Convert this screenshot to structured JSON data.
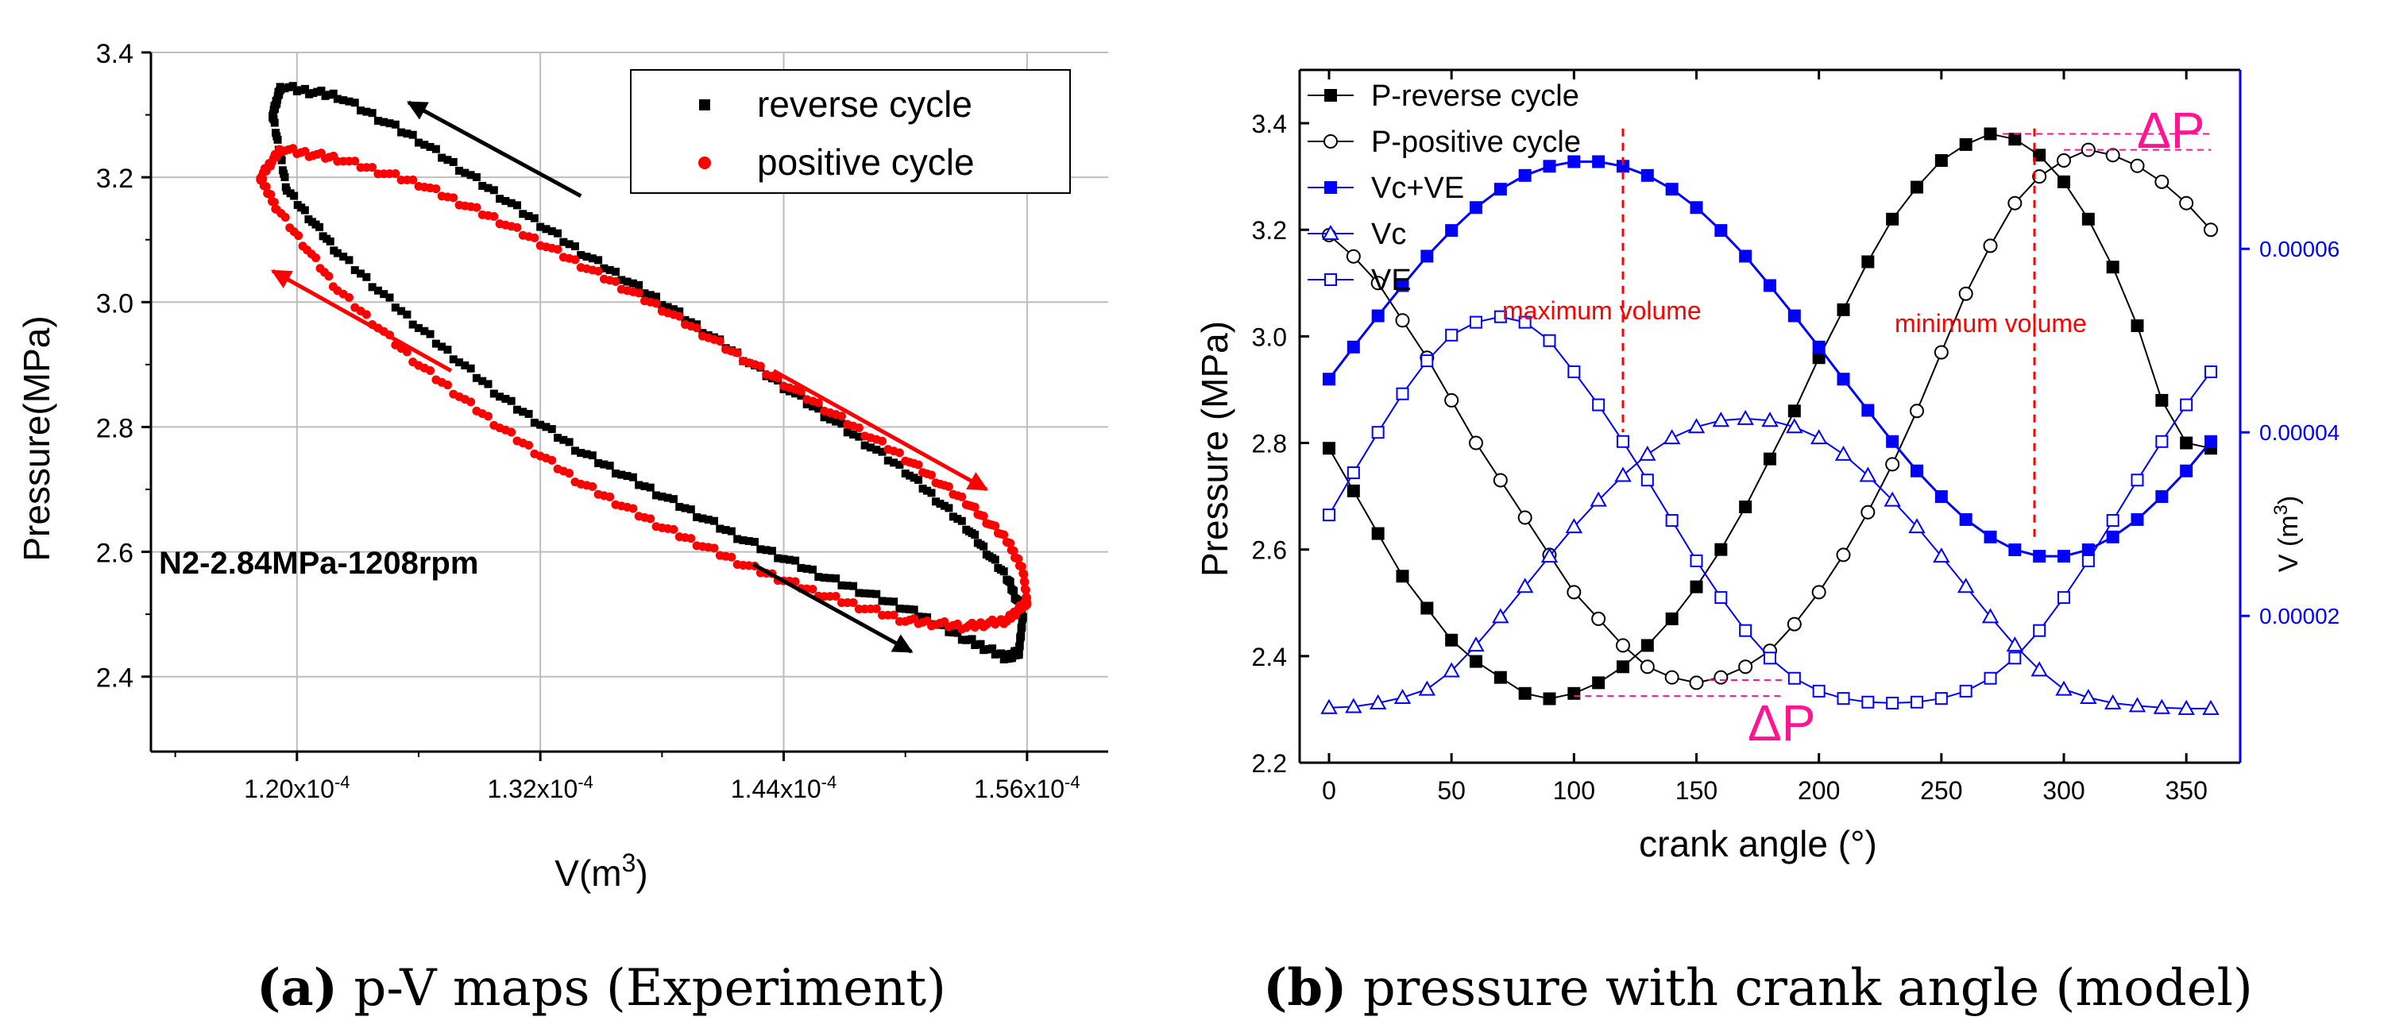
{
  "chart_data": [
    {
      "id": "a",
      "type": "scatter",
      "caption": {
        "letter": "a",
        "text": " p-V maps (Experiment)"
      },
      "xlabel": {
        "base": "V(m",
        "sup": "3",
        "close": ")"
      },
      "ylabel": "Pressure(MPa)",
      "xlim": [
        0.0001128,
        0.00016
      ],
      "ylim": [
        2.28,
        3.4
      ],
      "xticks": [
        {
          "value": 0.00012,
          "label": "1.20x10",
          "exp": "-4"
        },
        {
          "value": 0.000132,
          "label": "1.32x10",
          "exp": "-4"
        },
        {
          "value": 0.000144,
          "label": "1.44x10",
          "exp": "-4"
        },
        {
          "value": 0.000156,
          "label": "1.56x10",
          "exp": "-4"
        }
      ],
      "yticks": [
        2.4,
        2.6,
        2.8,
        3.0,
        3.2,
        3.4
      ],
      "ytick_labels": [
        "2.4",
        "2.6",
        "2.8",
        "3.0",
        "3.2",
        "3.4"
      ],
      "grid": true,
      "annotation": "N2-2.84MPa-1208rpm",
      "legend": {
        "position": "top-right",
        "entries": [
          {
            "label": "reverse cycle",
            "color": "#000000",
            "marker": "square"
          },
          {
            "label": "positive cycle",
            "color": "#ff0000",
            "marker": "circle"
          }
        ]
      },
      "series": [
        {
          "name": "reverse cycle",
          "color": "#000000",
          "marker": "square",
          "loop_upper": [
            [
              0.0001188,
              3.3
            ],
            [
              0.0001192,
              3.345
            ],
            [
              0.000122,
              3.33
            ],
            [
              0.000126,
              3.26
            ],
            [
              0.00013,
              3.17
            ],
            [
              0.000134,
              3.08
            ],
            [
              0.000138,
              3.0
            ],
            [
              0.000142,
              2.91
            ],
            [
              0.000146,
              2.82
            ],
            [
              0.00015,
              2.73
            ],
            [
              0.000153,
              2.64
            ],
            [
              0.000155,
              2.56
            ],
            [
              0.0001558,
              2.5
            ],
            [
              0.0001556,
              2.44
            ]
          ],
          "loop_lower": [
            [
              0.0001188,
              3.3
            ],
            [
              0.0001195,
              3.18
            ],
            [
              0.000122,
              3.08
            ],
            [
              0.000126,
              2.96
            ],
            [
              0.00013,
              2.85
            ],
            [
              0.000134,
              2.76
            ],
            [
              0.000138,
              2.69
            ],
            [
              0.000142,
              2.62
            ],
            [
              0.000146,
              2.56
            ],
            [
              0.00015,
              2.51
            ],
            [
              0.000153,
              2.46
            ],
            [
              0.000155,
              2.43
            ],
            [
              0.0001556,
              2.44
            ]
          ]
        },
        {
          "name": "positive cycle",
          "color": "#ff0000",
          "marker": "circle",
          "loop_upper": [
            [
              0.0001182,
              3.2
            ],
            [
              0.0001192,
              3.245
            ],
            [
              0.000122,
              3.23
            ],
            [
              0.000126,
              3.19
            ],
            [
              0.00013,
              3.13
            ],
            [
              0.000134,
              3.06
            ],
            [
              0.000138,
              2.99
            ],
            [
              0.000142,
              2.91
            ],
            [
              0.000146,
              2.83
            ],
            [
              0.00015,
              2.75
            ],
            [
              0.000153,
              2.68
            ],
            [
              0.000155,
              2.62
            ],
            [
              0.0001558,
              2.57
            ],
            [
              0.000156,
              2.52
            ]
          ],
          "loop_lower": [
            [
              0.0001182,
              3.2
            ],
            [
              0.000119,
              3.15
            ],
            [
              0.000122,
              3.02
            ],
            [
              0.000126,
              2.9
            ],
            [
              0.00013,
              2.8
            ],
            [
              0.000134,
              2.71
            ],
            [
              0.000138,
              2.64
            ],
            [
              0.000142,
              2.58
            ],
            [
              0.000146,
              2.53
            ],
            [
              0.00015,
              2.49
            ],
            [
              0.000153,
              2.48
            ],
            [
              0.000155,
              2.49
            ],
            [
              0.000156,
              2.52
            ]
          ]
        }
      ],
      "arrows": [
        {
          "color": "#000000",
          "from": [
            0.000134,
            3.17
          ],
          "to": [
            0.0001255,
            3.32
          ]
        },
        {
          "color": "#ff0000",
          "from": [
            0.0001276,
            2.89
          ],
          "to": [
            0.0001188,
            3.05
          ]
        },
        {
          "color": "#ff0000",
          "from": [
            0.0001435,
            2.89
          ],
          "to": [
            0.000154,
            2.7
          ]
        },
        {
          "color": "#000000",
          "from": [
            0.0001425,
            2.58
          ],
          "to": [
            0.0001503,
            2.44
          ]
        }
      ]
    },
    {
      "id": "b",
      "type": "line",
      "caption": {
        "letter": "b",
        "text": " pressure with crank angle (model)"
      },
      "xlabel": "crank angle (°)",
      "ylabel": "Pressure (MPa)",
      "y2label": {
        "base": "V (m",
        "sup": "3",
        "close": ")"
      },
      "xlim": [
        -12,
        372
      ],
      "ylim": [
        2.2,
        3.5
      ],
      "y2lim": [
        4e-06,
        7.95e-05
      ],
      "xticks": [
        0,
        50,
        100,
        150,
        200,
        250,
        300,
        350
      ],
      "xtick_labels": [
        "0",
        "50",
        "100",
        "150",
        "200",
        "250",
        "300",
        "350"
      ],
      "yticks": [
        2.2,
        2.4,
        2.6,
        2.8,
        3.0,
        3.2,
        3.4
      ],
      "ytick_labels": [
        "2.2",
        "2.4",
        "2.6",
        "2.8",
        "3.0",
        "3.2",
        "3.4"
      ],
      "y2ticks": [
        2e-05,
        4e-05,
        6e-05
      ],
      "y2tick_labels": [
        "0.00002",
        "0.00004",
        "0.00006"
      ],
      "grid": false,
      "legend": {
        "position": "top-left",
        "entries": [
          {
            "label": "P-reverse cycle",
            "color": "#000000",
            "marker": "square-filled"
          },
          {
            "label": "P-positive cycle",
            "color": "#000000",
            "marker": "circle-open"
          },
          {
            "label": "Vc+VE",
            "color": "#0000ff",
            "marker": "square-filled"
          },
          {
            "label": "Vc",
            "color": "#0000ff",
            "marker": "triangle-open"
          },
          {
            "label": "VE",
            "color": "#0000ff",
            "marker": "square-open"
          }
        ]
      },
      "x": [
        0,
        10,
        20,
        30,
        40,
        50,
        60,
        70,
        80,
        90,
        100,
        110,
        120,
        130,
        140,
        150,
        160,
        170,
        180,
        190,
        200,
        210,
        220,
        230,
        240,
        250,
        260,
        270,
        280,
        290,
        300,
        310,
        320,
        330,
        340,
        350,
        360
      ],
      "series": [
        {
          "name": "P-reverse cycle",
          "axis": "left",
          "color": "#000000",
          "marker": "square-filled",
          "values": [
            2.79,
            2.71,
            2.63,
            2.55,
            2.49,
            2.43,
            2.39,
            2.36,
            2.33,
            2.32,
            2.33,
            2.35,
            2.38,
            2.42,
            2.47,
            2.53,
            2.6,
            2.68,
            2.77,
            2.86,
            2.96,
            3.05,
            3.14,
            3.22,
            3.28,
            3.33,
            3.36,
            3.38,
            3.37,
            3.34,
            3.29,
            3.22,
            3.13,
            3.02,
            2.88,
            2.8,
            2.79
          ]
        },
        {
          "name": "P-positive cycle",
          "axis": "left",
          "color": "#000000",
          "marker": "circle-open",
          "values": [
            3.19,
            3.15,
            3.1,
            3.03,
            2.96,
            2.88,
            2.8,
            2.73,
            2.66,
            2.59,
            2.52,
            2.47,
            2.42,
            2.38,
            2.36,
            2.35,
            2.36,
            2.38,
            2.41,
            2.46,
            2.52,
            2.59,
            2.67,
            2.76,
            2.86,
            2.97,
            3.08,
            3.17,
            3.25,
            3.3,
            3.33,
            3.35,
            3.34,
            3.32,
            3.29,
            3.25,
            3.2
          ]
        },
        {
          "name": "Vc+VE",
          "axis": "right",
          "color": "#0000ff",
          "marker": "square-filled",
          "values": [
            4.58e-05,
            4.93e-05,
            5.27e-05,
            5.6e-05,
            5.92e-05,
            6.2e-05,
            6.45e-05,
            6.65e-05,
            6.8e-05,
            6.9e-05,
            6.95e-05,
            6.95e-05,
            6.9e-05,
            6.8e-05,
            6.65e-05,
            6.45e-05,
            6.2e-05,
            5.92e-05,
            5.6e-05,
            5.27e-05,
            4.93e-05,
            4.58e-05,
            4.24e-05,
            3.9e-05,
            3.58e-05,
            3.3e-05,
            3.05e-05,
            2.86e-05,
            2.72e-05,
            2.65e-05,
            2.65e-05,
            2.72e-05,
            2.86e-05,
            3.05e-05,
            3.3e-05,
            3.58e-05,
            3.9e-05
          ]
        },
        {
          "name": "Vc",
          "axis": "right",
          "color": "#0000ff",
          "marker": "triangle-open",
          "values": [
            1e-05,
            1.01e-05,
            1.05e-05,
            1.11e-05,
            1.2e-05,
            1.4e-05,
            1.68e-05,
            1.99e-05,
            2.32e-05,
            2.65e-05,
            2.97e-05,
            3.26e-05,
            3.53e-05,
            3.76e-05,
            3.94e-05,
            4.06e-05,
            4.13e-05,
            4.15e-05,
            4.13e-05,
            4.06e-05,
            3.94e-05,
            3.76e-05,
            3.53e-05,
            3.26e-05,
            2.97e-05,
            2.65e-05,
            2.32e-05,
            1.99e-05,
            1.68e-05,
            1.41e-05,
            1.2e-05,
            1.11e-05,
            1.05e-05,
            1.02e-05,
            1e-05,
            9.9e-06,
            9.9e-06
          ]
        },
        {
          "name": "VE",
          "axis": "right",
          "color": "#0000ff",
          "marker": "square-open",
          "values": [
            3.1e-05,
            3.56e-05,
            4e-05,
            4.42e-05,
            4.78e-05,
            5.06e-05,
            5.2e-05,
            5.26e-05,
            5.2e-05,
            5e-05,
            4.66e-05,
            4.3e-05,
            3.9e-05,
            3.48e-05,
            3.04e-05,
            2.6e-05,
            2.2e-05,
            1.84e-05,
            1.54e-05,
            1.32e-05,
            1.18e-05,
            1.1e-05,
            1.06e-05,
            1.05e-05,
            1.06e-05,
            1.1e-05,
            1.18e-05,
            1.32e-05,
            1.54e-05,
            1.84e-05,
            2.2e-05,
            2.6e-05,
            3.04e-05,
            3.48e-05,
            3.9e-05,
            4.3e-05,
            4.66e-05
          ]
        }
      ],
      "annotations": [
        {
          "text": "maximum volume",
          "color": "#ff0000",
          "at_x": 120
        },
        {
          "text": "minimum volume",
          "color": "#ff0000",
          "at_x": 288
        },
        {
          "text": "ΔP",
          "color": "#ff1493",
          "near": "top-right"
        },
        {
          "text": "ΔP",
          "color": "#ff1493",
          "near": "bottom-middle"
        }
      ]
    }
  ]
}
